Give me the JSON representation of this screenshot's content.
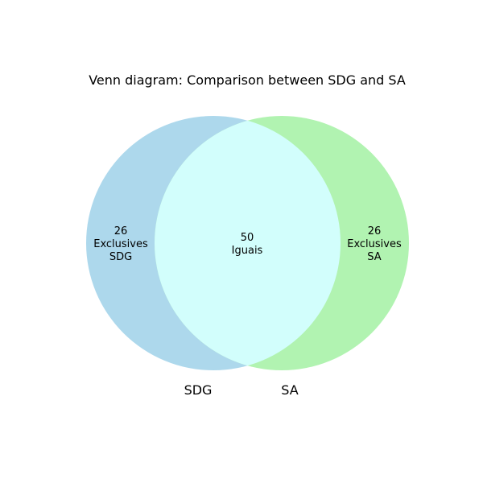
{
  "title": "Venn diagram: Comparison between SDG and SA",
  "sets": {
    "left": {
      "label": "SDG",
      "color": "#add8ec"
    },
    "right": {
      "label": "SA",
      "color": "#b1f3b1"
    }
  },
  "intersection_color": "#d2fefc",
  "regions": {
    "left_only": {
      "count": "26",
      "line1": "Exclusives",
      "line2": "SDG"
    },
    "both": {
      "count": "50",
      "line1": "Iguais"
    },
    "right_only": {
      "count": "26",
      "line1": "Exclusives",
      "line2": "SA"
    }
  }
}
